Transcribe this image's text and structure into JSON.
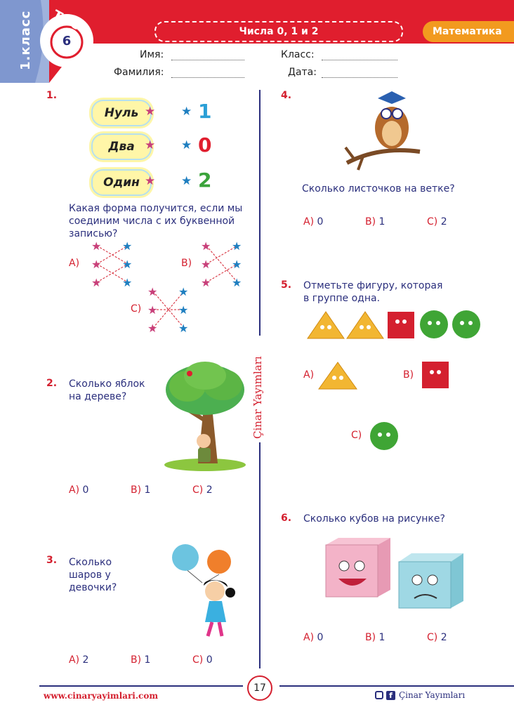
{
  "header": {
    "grade_label": "1.класс",
    "test_label": "тест",
    "test_number": "6",
    "title": "Числа 0, 1 и 2",
    "subject": "Математика",
    "fields": {
      "name": "Имя:",
      "class": "Класс:",
      "surname": "Фамилия:",
      "date": "Дата:"
    }
  },
  "side_brand": "Çinar Yayımları",
  "q1": {
    "number": "1.",
    "words": [
      "Нуль",
      "Два",
      "Один"
    ],
    "digits": [
      "1",
      "0",
      "2"
    ],
    "text": "Какая форма получится, если мы соединим числа с их буквенной записью?",
    "options": [
      "A)",
      "B)",
      "C)"
    ]
  },
  "q2": {
    "number": "2.",
    "text": "Сколько яблок на дереве?",
    "options": [
      {
        "letter": "A)",
        "value": "0"
      },
      {
        "letter": "B)",
        "value": "1"
      },
      {
        "letter": "C)",
        "value": "2"
      }
    ]
  },
  "q3": {
    "number": "3.",
    "text": "Сколько шаров у девочки?",
    "options": [
      {
        "letter": "A)",
        "value": "2"
      },
      {
        "letter": "B)",
        "value": "1"
      },
      {
        "letter": "C)",
        "value": "0"
      }
    ]
  },
  "q4": {
    "number": "4.",
    "text": "Сколько листочков на ветке?",
    "options": [
      {
        "letter": "A)",
        "value": "0"
      },
      {
        "letter": "B)",
        "value": "1"
      },
      {
        "letter": "C)",
        "value": "2"
      }
    ]
  },
  "q5": {
    "number": "5.",
    "text": "Отметьте фигуру, которая в группе одна.",
    "options": [
      "A)",
      "B)",
      "C)"
    ]
  },
  "q6": {
    "number": "6.",
    "text": "Сколько кубов на рисунке?",
    "options": [
      {
        "letter": "A)",
        "value": "0"
      },
      {
        "letter": "B)",
        "value": "1"
      },
      {
        "letter": "C)",
        "value": "2"
      }
    ]
  },
  "footer": {
    "website": "www.cinaryayimlari.com",
    "page_number": "17",
    "brand": "Çinar Yayımları"
  },
  "colors": {
    "red": "#d4202f",
    "navy": "#2b2f7d",
    "orange": "#f29a1f"
  }
}
